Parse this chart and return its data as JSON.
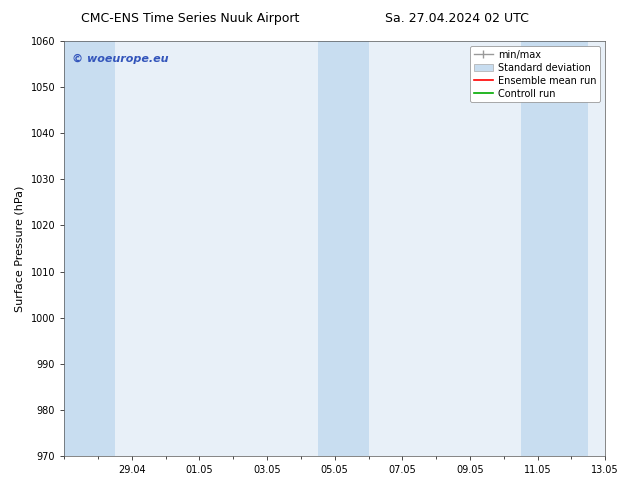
{
  "title_left": "CMC-ENS Time Series Nuuk Airport",
  "title_right": "Sa. 27.04.2024 02 UTC",
  "ylabel": "Surface Pressure (hPa)",
  "ylim": [
    970,
    1060
  ],
  "yticks": [
    970,
    980,
    990,
    1000,
    1010,
    1020,
    1030,
    1040,
    1050,
    1060
  ],
  "xtick_labels": [
    "29.04",
    "01.05",
    "03.05",
    "05.05",
    "07.05",
    "09.05",
    "11.05",
    "13.05"
  ],
  "bg_color": "#ffffff",
  "plot_bg_color": "#e8f0f8",
  "shaded_bands": [
    {
      "x_start": 0,
      "x_end": 1.5,
      "color": "#c8ddf0"
    },
    {
      "x_start": 7.5,
      "x_end": 9.0,
      "color": "#c8ddf0"
    },
    {
      "x_start": 13.5,
      "x_end": 15.5,
      "color": "#c8ddf0"
    }
  ],
  "x_min": 0,
  "x_max": 16,
  "xtick_pos": [
    2,
    4,
    6,
    8,
    10,
    12,
    14,
    16
  ],
  "watermark_text": "© woeurope.eu",
  "watermark_color": "#3355bb",
  "legend_items": [
    {
      "label": "min/max",
      "color": "#999999",
      "type": "errorbar"
    },
    {
      "label": "Standard deviation",
      "color": "#c8ddf0",
      "type": "fill"
    },
    {
      "label": "Ensemble mean run",
      "color": "#ff0000",
      "type": "line"
    },
    {
      "label": "Controll run",
      "color": "#00aa00",
      "type": "line"
    }
  ],
  "title_fontsize": 9,
  "tick_fontsize": 7,
  "legend_fontsize": 7,
  "watermark_fontsize": 8,
  "ylabel_fontsize": 8
}
